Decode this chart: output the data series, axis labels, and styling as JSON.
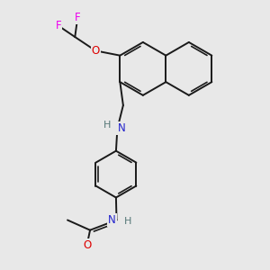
{
  "bg_color": "#e8e8e8",
  "bond_color": "#1a1a1a",
  "bond_width": 1.4,
  "atom_colors": {
    "F": "#ee00ee",
    "O": "#dd0000",
    "N": "#2222cc",
    "H": "#557777",
    "C": "#1a1a1a"
  },
  "figsize": [
    3.0,
    3.0
  ],
  "dpi": 100
}
